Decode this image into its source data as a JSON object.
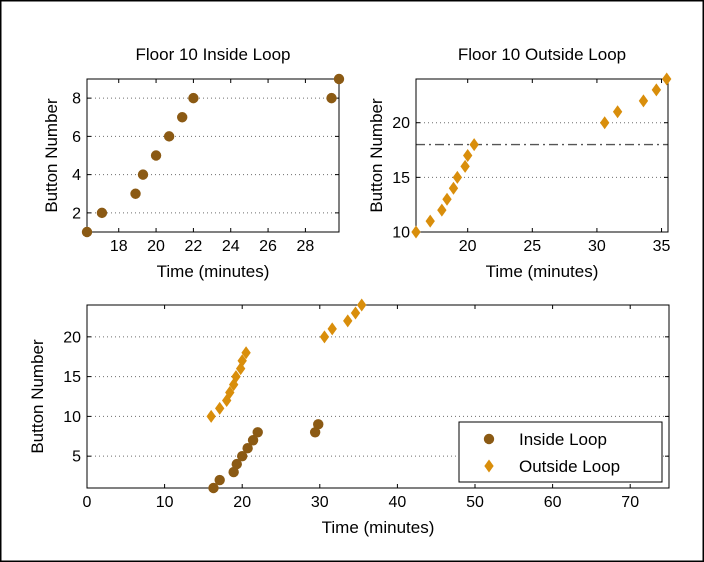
{
  "colors": {
    "inside": "#8B5A14",
    "outside": "#D98E0B",
    "threshold": "#555555"
  },
  "chart_data": [
    {
      "id": "top-left",
      "type": "scatter",
      "title": "Floor 10 Inside Loop",
      "xlabel": "Time (minutes)",
      "ylabel": "Button Number",
      "xlim": [
        16.3,
        29.8
      ],
      "ylim": [
        1,
        9
      ],
      "xticks": [
        18,
        20,
        22,
        24,
        26,
        28
      ],
      "yticks": [
        2,
        4,
        6,
        8
      ],
      "grid": "horizontal-dotted",
      "series": [
        {
          "key": "inside",
          "marker": "circle",
          "points": [
            [
              16.3,
              1
            ],
            [
              17.1,
              2
            ],
            [
              18.9,
              3
            ],
            [
              19.3,
              4
            ],
            [
              20.0,
              5
            ],
            [
              20.7,
              6
            ],
            [
              21.4,
              7
            ],
            [
              22.0,
              8
            ],
            [
              29.4,
              8
            ],
            [
              29.8,
              9
            ]
          ]
        }
      ]
    },
    {
      "id": "top-right",
      "type": "scatter",
      "title": "Floor 10 Outside Loop",
      "xlabel": "Time (minutes)",
      "ylabel": "Button Number",
      "xlim": [
        16,
        35.5
      ],
      "ylim": [
        10,
        24
      ],
      "xticks": [
        20,
        25,
        30,
        35
      ],
      "yticks": [
        10,
        15,
        20
      ],
      "grid": "horizontal-dotted",
      "threshold_y": 18,
      "series": [
        {
          "key": "outside",
          "marker": "diamond",
          "points": [
            [
              16.0,
              10
            ],
            [
              17.1,
              11
            ],
            [
              18.0,
              12
            ],
            [
              18.4,
              13
            ],
            [
              18.9,
              14
            ],
            [
              19.2,
              15
            ],
            [
              19.8,
              16
            ],
            [
              20.0,
              17
            ],
            [
              20.5,
              18
            ],
            [
              30.6,
              20
            ],
            [
              31.6,
              21
            ],
            [
              33.6,
              22
            ],
            [
              34.6,
              23
            ],
            [
              35.4,
              24
            ]
          ]
        }
      ]
    },
    {
      "id": "bottom",
      "type": "scatter",
      "xlabel": "Time (minutes)",
      "ylabel": "Button Number",
      "xlim": [
        0,
        75
      ],
      "ylim": [
        1,
        24
      ],
      "xticks": [
        0,
        10,
        20,
        30,
        40,
        50,
        60,
        70
      ],
      "yticks": [
        5,
        10,
        15,
        20
      ],
      "grid": "horizontal-dotted",
      "legend_position": "bottom-right",
      "series": [
        {
          "key": "inside",
          "name": "Inside Loop",
          "marker": "circle",
          "points": [
            [
              16.3,
              1
            ],
            [
              17.1,
              2
            ],
            [
              18.9,
              3
            ],
            [
              19.3,
              4
            ],
            [
              20.0,
              5
            ],
            [
              20.7,
              6
            ],
            [
              21.4,
              7
            ],
            [
              22.0,
              8
            ],
            [
              29.4,
              8
            ],
            [
              29.8,
              9
            ]
          ]
        },
        {
          "key": "outside",
          "name": "Outside Loop",
          "marker": "diamond",
          "points": [
            [
              16.0,
              10
            ],
            [
              17.1,
              11
            ],
            [
              18.0,
              12
            ],
            [
              18.4,
              13
            ],
            [
              18.9,
              14
            ],
            [
              19.2,
              15
            ],
            [
              19.8,
              16
            ],
            [
              20.0,
              17
            ],
            [
              20.5,
              18
            ],
            [
              30.6,
              20
            ],
            [
              31.6,
              21
            ],
            [
              33.6,
              22
            ],
            [
              34.6,
              23
            ],
            [
              35.4,
              24
            ]
          ]
        }
      ]
    }
  ]
}
